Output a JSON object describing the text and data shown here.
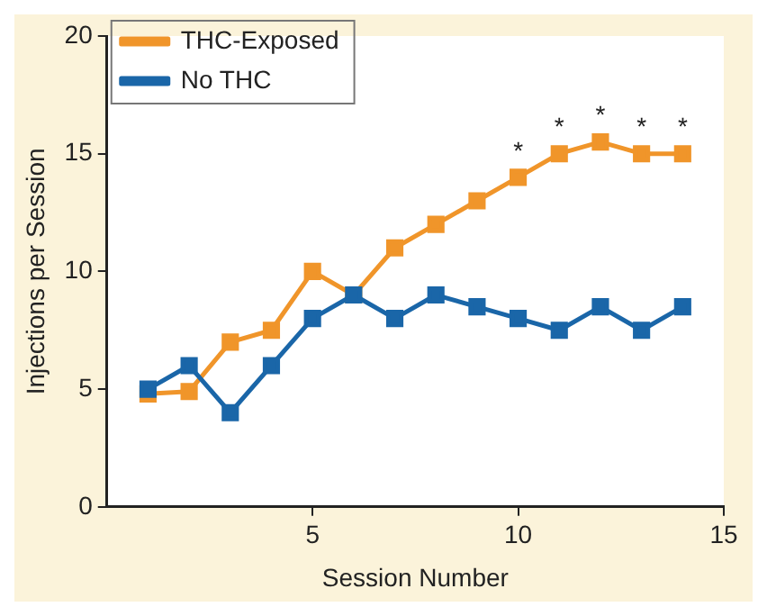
{
  "chart_data": {
    "type": "line",
    "xlabel": "Session Number",
    "ylabel": "Injections per Session",
    "x": [
      1,
      2,
      3,
      4,
      5,
      6,
      7,
      8,
      9,
      10,
      11,
      12,
      13,
      14
    ],
    "xlim": [
      0,
      15
    ],
    "xticks": [
      5,
      10,
      15
    ],
    "ylim": [
      0,
      20
    ],
    "yticks": [
      0,
      5,
      10,
      15,
      20
    ],
    "series": [
      {
        "name": "THC-Exposed",
        "color": "#f0952a",
        "values": [
          4.8,
          4.9,
          7,
          7.5,
          10,
          9,
          11,
          12,
          13,
          14,
          15,
          15.5,
          15,
          15
        ]
      },
      {
        "name": "No THC",
        "color": "#1a66a8",
        "values": [
          5,
          6,
          4,
          6,
          8,
          9,
          8,
          9,
          8.5,
          8,
          7.5,
          8.5,
          7.5,
          8.5
        ]
      }
    ],
    "marker": "square",
    "line_style": "solid",
    "grid": false,
    "legend": "top left",
    "annotations": [
      {
        "text": "*",
        "x": 10,
        "y": 14
      },
      {
        "text": "*",
        "x": 11,
        "y": 15
      },
      {
        "text": "*",
        "x": 12,
        "y": 15.5
      },
      {
        "text": "*",
        "x": 13,
        "y": 15
      },
      {
        "text": "*",
        "x": 14,
        "y": 15
      }
    ]
  }
}
